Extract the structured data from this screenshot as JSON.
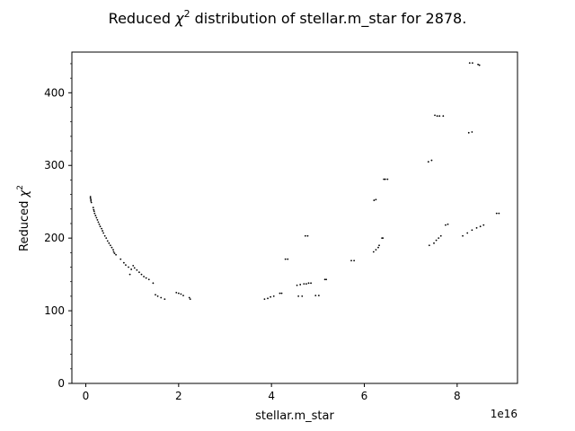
{
  "chart_data": {
    "type": "scatter",
    "title": "Reduced χ² distribution of stellar.m_star for 2878.",
    "title_prefix": "Reduced ",
    "title_chi": "χ",
    "title_sup": "2",
    "title_suffix": " distribution of stellar.m_star for 2878.",
    "xlabel": "stellar.m_star",
    "ylabel_prefix": "Reduced ",
    "ylabel_chi": "χ",
    "ylabel_sup": "2",
    "x_offset_label": "1e16",
    "xlim": [
      -0.3,
      9.3
    ],
    "ylim": [
      0,
      456
    ],
    "x_ticks": [
      0,
      2,
      4,
      6,
      8
    ],
    "x_tick_labels": [
      "0",
      "2",
      "4",
      "6",
      "8"
    ],
    "y_ticks": [
      0,
      100,
      200,
      300,
      400
    ],
    "y_tick_labels": [
      "0",
      "100",
      "200",
      "300",
      "400"
    ],
    "grid": false,
    "marker_color": "#000000",
    "series": [
      {
        "points": [
          [
            0.1,
            257
          ],
          [
            0.1,
            255
          ],
          [
            0.11,
            253
          ],
          [
            0.11,
            251
          ],
          [
            0.12,
            249
          ],
          [
            0.16,
            242
          ],
          [
            0.17,
            239
          ],
          [
            0.18,
            237
          ],
          [
            0.19,
            234
          ],
          [
            0.21,
            231
          ],
          [
            0.23,
            228
          ],
          [
            0.25,
            225
          ],
          [
            0.27,
            222
          ],
          [
            0.29,
            219
          ],
          [
            0.31,
            216
          ],
          [
            0.34,
            213
          ],
          [
            0.36,
            210
          ],
          [
            0.38,
            207
          ],
          [
            0.41,
            203
          ],
          [
            0.44,
            200
          ],
          [
            0.47,
            196
          ],
          [
            0.5,
            193
          ],
          [
            0.53,
            190
          ],
          [
            0.56,
            187
          ],
          [
            0.59,
            184
          ],
          [
            0.6,
            181
          ],
          [
            0.62,
            179
          ],
          [
            0.65,
            177
          ],
          [
            0.75,
            171
          ],
          [
            0.82,
            166
          ],
          [
            0.86,
            163
          ],
          [
            0.92,
            160
          ],
          [
            0.98,
            157
          ],
          [
            1.02,
            162
          ],
          [
            1.05,
            159
          ],
          [
            1.1,
            156
          ],
          [
            1.15,
            153
          ],
          [
            1.2,
            150
          ],
          [
            1.25,
            147
          ],
          [
            1.3,
            145
          ],
          [
            1.36,
            143
          ],
          [
            0.95,
            150
          ],
          [
            1.45,
            138
          ],
          [
            1.5,
            122
          ],
          [
            1.55,
            120
          ],
          [
            1.62,
            118
          ],
          [
            1.7,
            116
          ],
          [
            1.95,
            125
          ],
          [
            2.0,
            124
          ],
          [
            2.05,
            123
          ],
          [
            2.1,
            121
          ],
          [
            2.23,
            118
          ],
          [
            2.25,
            116
          ],
          [
            3.85,
            116
          ],
          [
            3.92,
            117
          ],
          [
            3.98,
            119
          ],
          [
            4.05,
            120
          ],
          [
            4.18,
            124
          ],
          [
            4.22,
            124
          ],
          [
            4.3,
            171
          ],
          [
            4.35,
            171
          ],
          [
            4.55,
            135
          ],
          [
            4.62,
            136
          ],
          [
            4.58,
            120
          ],
          [
            4.66,
            120
          ],
          [
            4.7,
            137
          ],
          [
            4.75,
            137
          ],
          [
            4.8,
            138
          ],
          [
            4.85,
            138
          ],
          [
            4.73,
            203
          ],
          [
            4.78,
            203
          ],
          [
            4.95,
            121
          ],
          [
            5.02,
            121
          ],
          [
            5.15,
            143
          ],
          [
            5.18,
            143
          ],
          [
            5.72,
            169
          ],
          [
            5.78,
            169
          ],
          [
            6.2,
            181
          ],
          [
            6.25,
            184
          ],
          [
            6.3,
            187
          ],
          [
            6.32,
            190
          ],
          [
            6.38,
            200
          ],
          [
            6.4,
            200
          ],
          [
            6.21,
            252
          ],
          [
            6.25,
            253
          ],
          [
            6.42,
            281
          ],
          [
            6.45,
            281
          ],
          [
            6.5,
            281
          ],
          [
            7.38,
            305
          ],
          [
            7.45,
            307
          ],
          [
            7.4,
            190
          ],
          [
            7.5,
            193
          ],
          [
            7.55,
            197
          ],
          [
            7.6,
            200
          ],
          [
            7.65,
            203
          ],
          [
            7.52,
            369
          ],
          [
            7.57,
            368
          ],
          [
            7.62,
            368
          ],
          [
            7.7,
            368
          ],
          [
            7.75,
            218
          ],
          [
            7.8,
            219
          ],
          [
            8.12,
            203
          ],
          [
            8.22,
            207
          ],
          [
            8.32,
            211
          ],
          [
            8.42,
            214
          ],
          [
            8.5,
            216
          ],
          [
            8.57,
            218
          ],
          [
            8.25,
            345
          ],
          [
            8.32,
            346
          ],
          [
            8.27,
            441
          ],
          [
            8.33,
            441
          ],
          [
            8.45,
            439
          ],
          [
            8.48,
            438
          ],
          [
            8.85,
            234
          ],
          [
            8.9,
            234
          ]
        ]
      }
    ]
  }
}
